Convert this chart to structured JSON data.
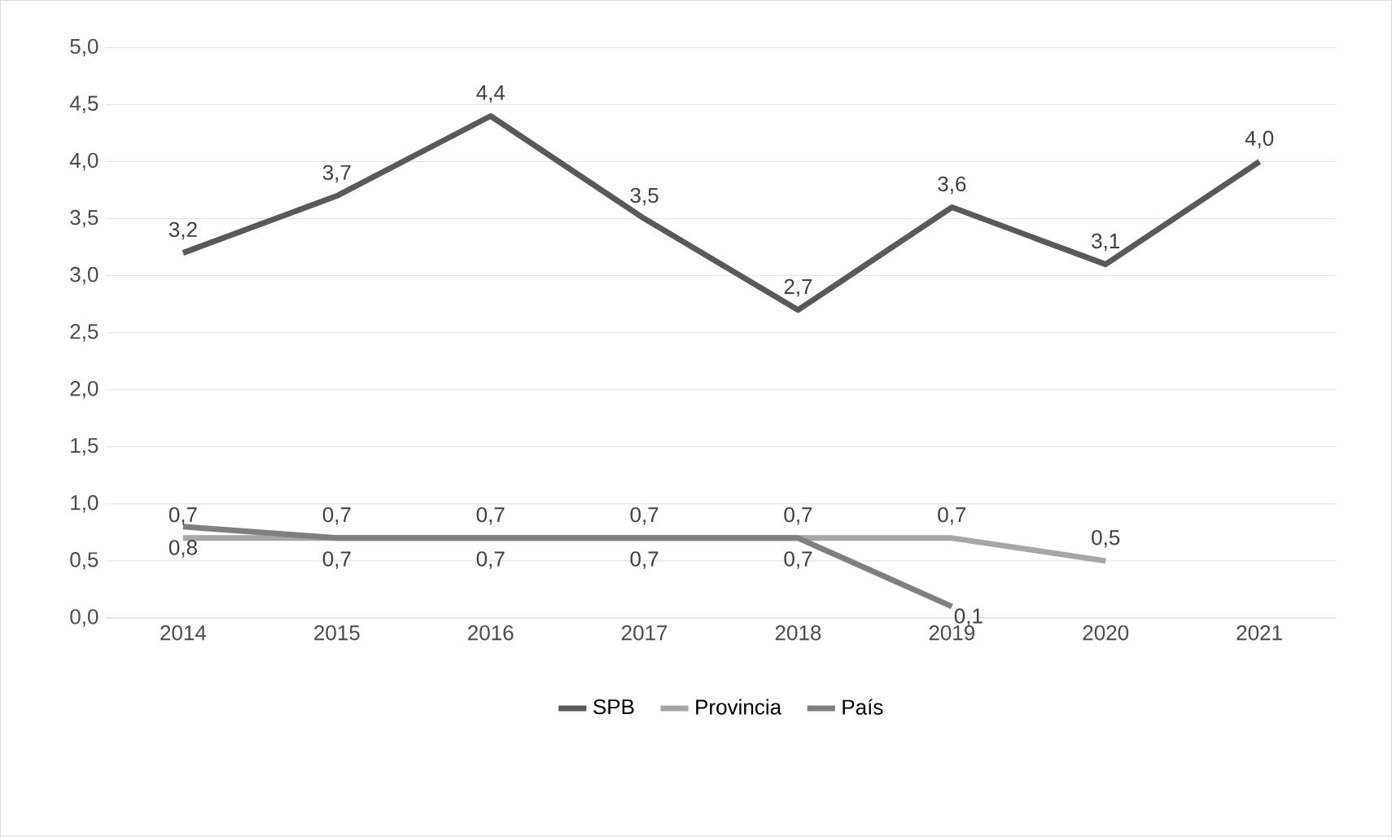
{
  "chart_data": {
    "type": "line",
    "categories": [
      "2014",
      "2015",
      "2016",
      "2017",
      "2018",
      "2019",
      "2020",
      "2021"
    ],
    "series": [
      {
        "name": "SPB",
        "color": "#595959",
        "values": [
          3.2,
          3.7,
          4.4,
          3.5,
          2.7,
          3.6,
          3.1,
          4.0
        ],
        "value_labels": [
          "3,2",
          "3,7",
          "4,4",
          "3,5",
          "2,7",
          "3,6",
          "3,1",
          "4,0"
        ]
      },
      {
        "name": "Provincia",
        "color": "#a6a6a6",
        "values": [
          0.7,
          0.7,
          0.7,
          0.7,
          0.7,
          0.7,
          0.5,
          null
        ],
        "value_labels": [
          "0,7",
          "0,7",
          "0,7",
          "0,7",
          "0,7",
          "0,7",
          "0,5",
          null
        ]
      },
      {
        "name": "País",
        "color": "#7f7f7f",
        "values": [
          0.8,
          0.7,
          0.7,
          0.7,
          0.7,
          0.1,
          null,
          null
        ],
        "value_labels": [
          "0,8",
          "0,7",
          "0,7",
          "0,7",
          "0,7",
          "0,1",
          null,
          null
        ]
      }
    ],
    "ylim": [
      0,
      5
    ],
    "yticks": [
      {
        "value": 0,
        "label": "0,0"
      },
      {
        "value": 0.5,
        "label": "0,5"
      },
      {
        "value": 1,
        "label": "1,0"
      },
      {
        "value": 1.5,
        "label": "1,5"
      },
      {
        "value": 2,
        "label": "2,0"
      },
      {
        "value": 2.5,
        "label": "2,5"
      },
      {
        "value": 3,
        "label": "3,0"
      },
      {
        "value": 3.5,
        "label": "3,5"
      },
      {
        "value": 4,
        "label": "4,0"
      },
      {
        "value": 4.5,
        "label": "4,5"
      },
      {
        "value": 5,
        "label": "5,0"
      }
    ],
    "grid": "y",
    "legend": "bottom",
    "marker": "none",
    "line_style": "solid"
  }
}
